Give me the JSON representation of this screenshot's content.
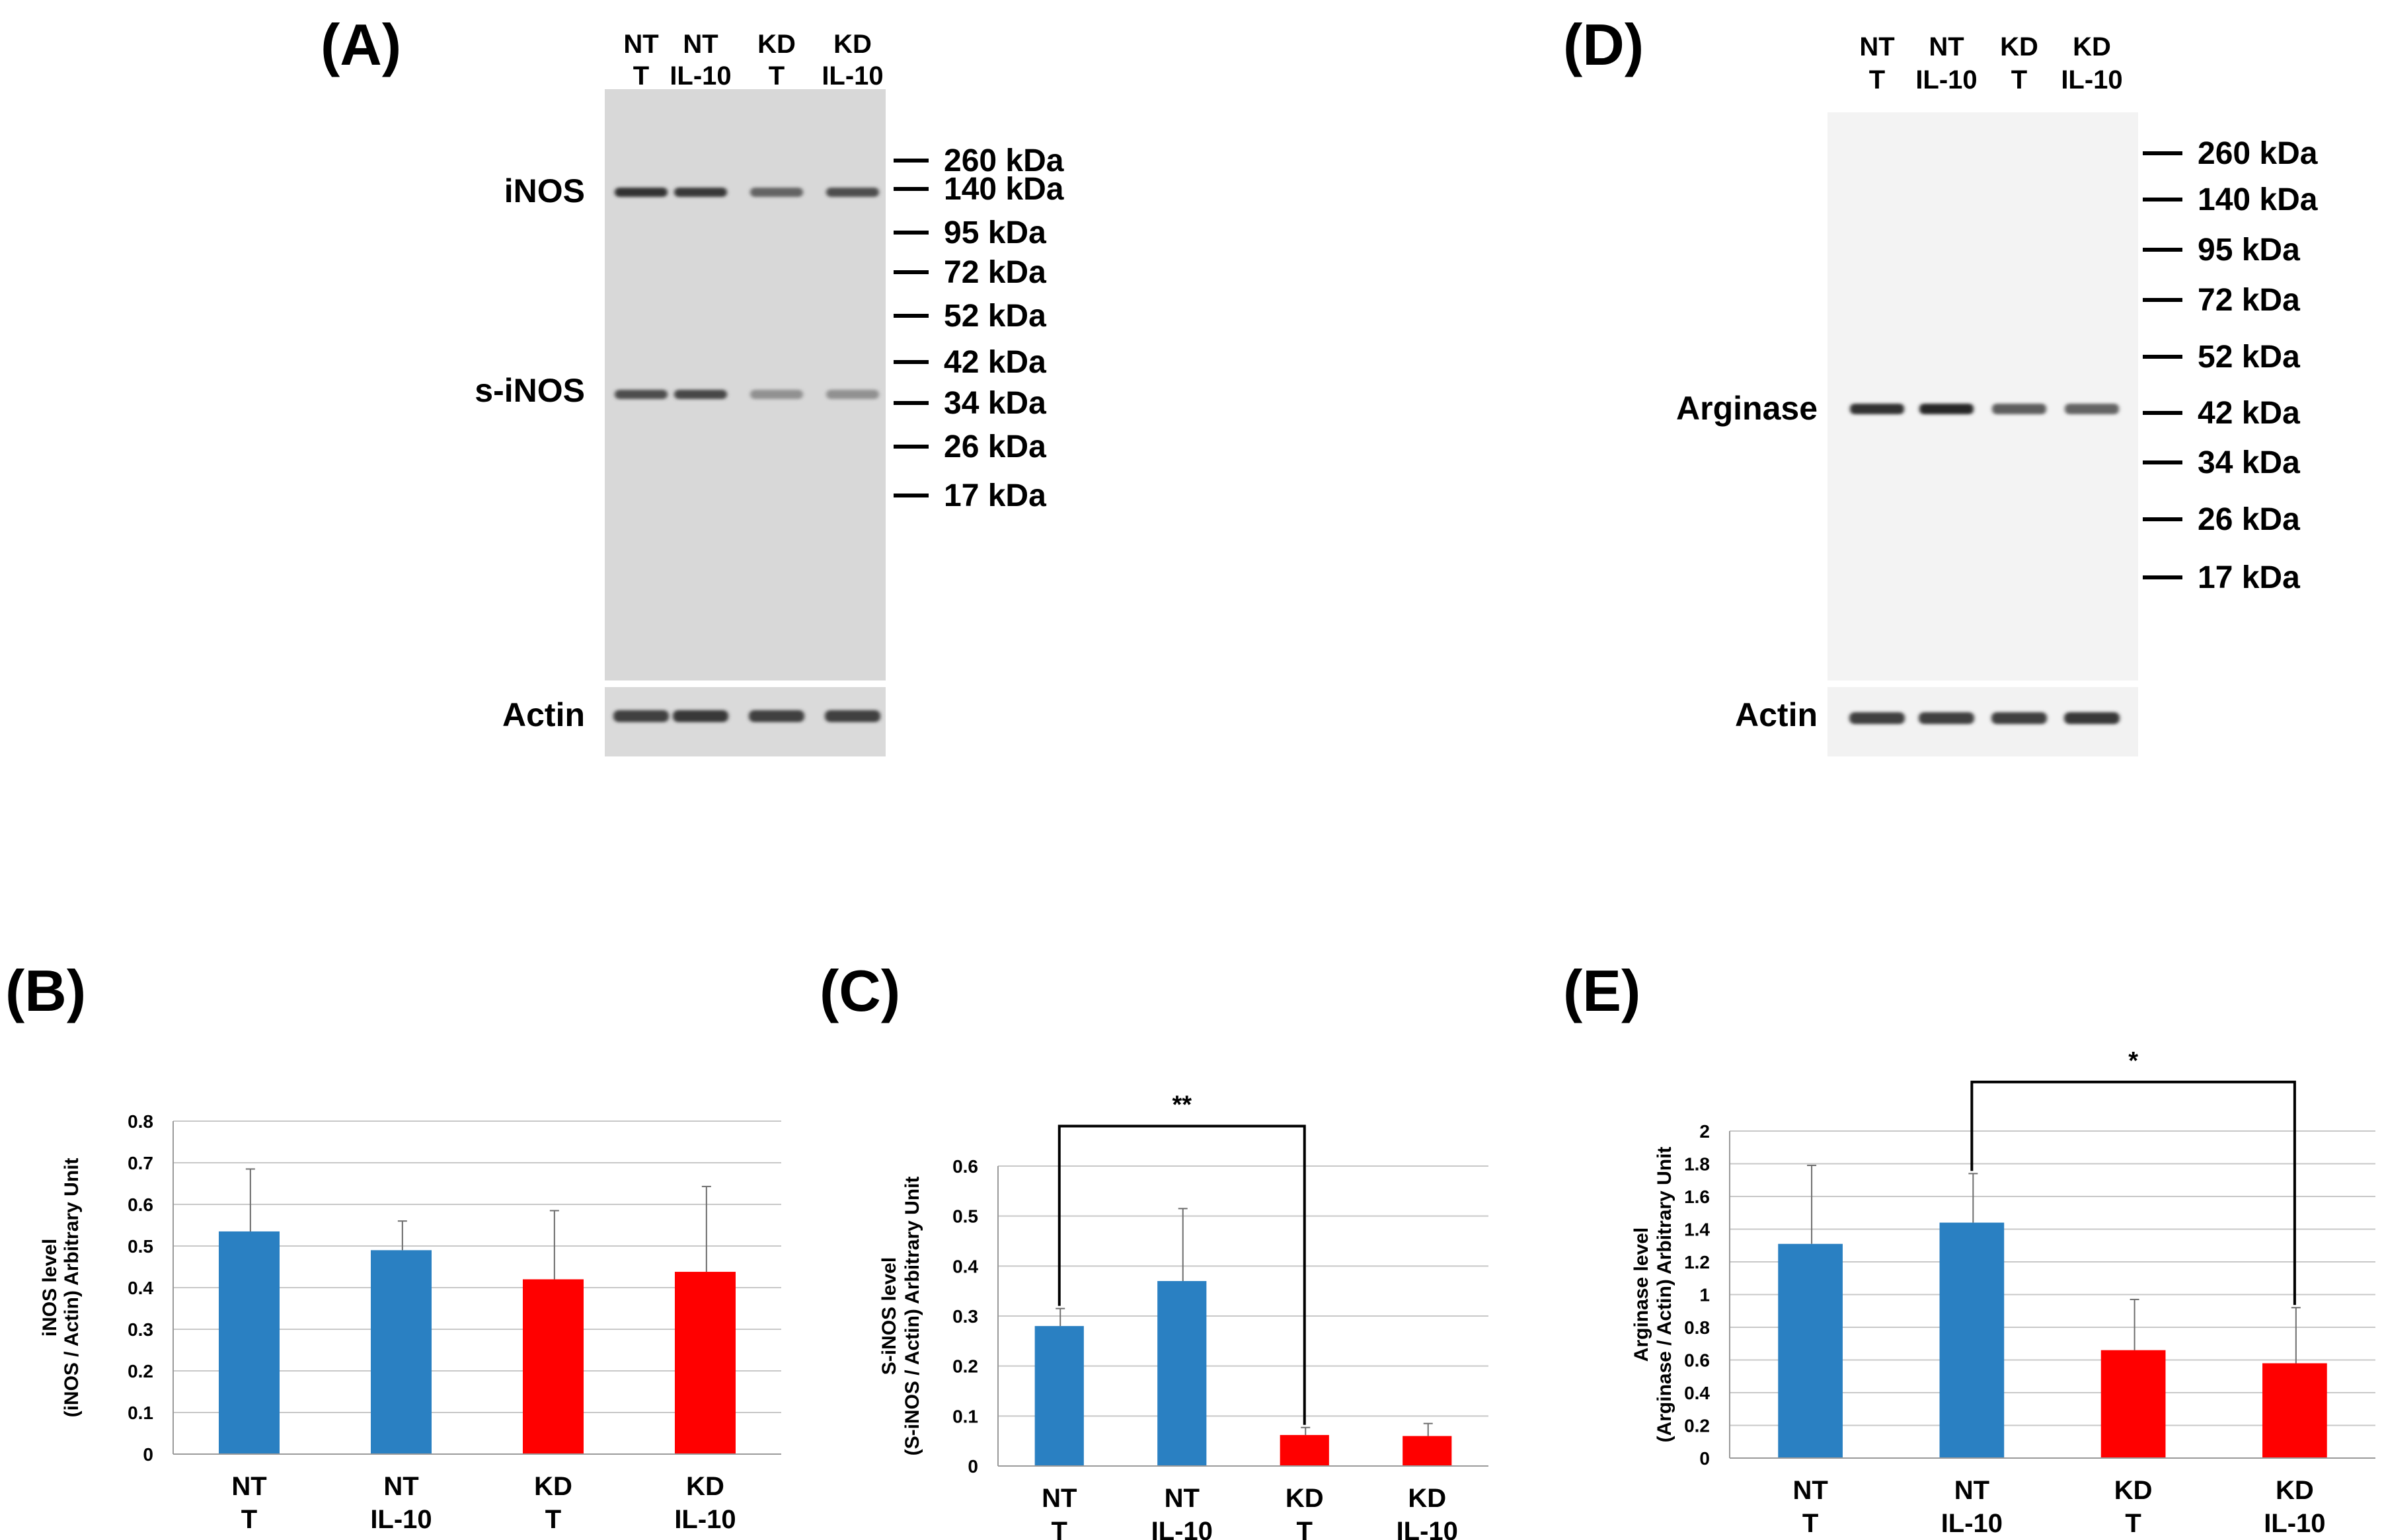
{
  "panels": {
    "A": {
      "label": "(A)",
      "lanes": [
        [
          "NT",
          "T"
        ],
        [
          "NT",
          "IL-10"
        ],
        [
          "KD",
          "T"
        ],
        [
          "KD",
          "IL-10"
        ]
      ],
      "markers": [
        "260 kDa",
        "140 kDa",
        "95 kDa",
        "72 kDa",
        "52 kDa",
        "42 kDa",
        "34 kDa",
        "26 kDa",
        "17 kDa"
      ],
      "bands": [
        {
          "label": "iNOS",
          "intensity": [
            0.95,
            0.9,
            0.6,
            0.75
          ]
        },
        {
          "label": "s-iNOS",
          "intensity": [
            0.75,
            0.8,
            0.3,
            0.3
          ]
        }
      ],
      "loading": {
        "label": "Actin",
        "intensity": [
          0.85,
          0.9,
          0.85,
          0.85
        ]
      }
    },
    "D": {
      "label": "(D)",
      "lanes": [
        [
          "NT",
          "T"
        ],
        [
          "NT",
          "IL-10"
        ],
        [
          "KD",
          "T"
        ],
        [
          "KD",
          "IL-10"
        ]
      ],
      "markers": [
        "260 kDa",
        "140 kDa",
        "95 kDa",
        "72 kDa",
        "52 kDa",
        "42 kDa",
        "34 kDa",
        "26 kDa",
        "17 kDa"
      ],
      "bands": [
        {
          "label": "Arginase",
          "intensity": [
            0.95,
            1.0,
            0.65,
            0.6
          ]
        }
      ],
      "loading": {
        "label": "Actin",
        "intensity": [
          0.85,
          0.85,
          0.85,
          0.9
        ]
      }
    }
  },
  "chart_data": [
    {
      "panel": "(B)",
      "type": "bar",
      "categories": [
        [
          "NT",
          "T"
        ],
        [
          "NT",
          "IL-10"
        ],
        [
          "KD",
          "T"
        ],
        [
          "KD",
          "IL-10"
        ]
      ],
      "values": [
        0.535,
        0.49,
        0.42,
        0.438
      ],
      "errors": [
        0.15,
        0.07,
        0.165,
        0.205
      ],
      "colors": [
        "#2a80c2",
        "#2a80c2",
        "#ff0000",
        "#ff0000"
      ],
      "ylim": [
        0,
        0.8
      ],
      "yticks": [
        "0",
        "0.1",
        "0.2",
        "0.3",
        "0.4",
        "0.5",
        "0.6",
        "0.7",
        "0.8"
      ],
      "ylabel": [
        "iNOS level",
        "(iNOS / Actin) Arbitrary Unit"
      ],
      "significance": []
    },
    {
      "panel": "(C)",
      "type": "bar",
      "categories": [
        [
          "NT",
          "T"
        ],
        [
          "NT",
          "IL-10"
        ],
        [
          "KD",
          "T"
        ],
        [
          "KD",
          "IL-10"
        ]
      ],
      "values": [
        0.28,
        0.37,
        0.062,
        0.06
      ],
      "errors": [
        0.035,
        0.145,
        0.015,
        0.025
      ],
      "colors": [
        "#2a80c2",
        "#2a80c2",
        "#ff0000",
        "#ff0000"
      ],
      "ylim": [
        0,
        0.6
      ],
      "yticks": [
        "0",
        "0.1",
        "0.2",
        "0.3",
        "0.4",
        "0.5",
        "0.6"
      ],
      "ylabel": [
        "S-iNOS level",
        "(S-iNOS / Actin) Arbitrary Unit"
      ],
      "significance": [
        {
          "from": 0,
          "to": 2,
          "label": "**",
          "level": 0.68
        }
      ]
    },
    {
      "panel": "(E)",
      "type": "bar",
      "categories": [
        [
          "NT",
          "T"
        ],
        [
          "NT",
          "IL-10"
        ],
        [
          "KD",
          "T"
        ],
        [
          "KD",
          "IL-10"
        ]
      ],
      "values": [
        1.31,
        1.44,
        0.66,
        0.58
      ],
      "errors": [
        0.48,
        0.3,
        0.31,
        0.34
      ],
      "colors": [
        "#2a80c2",
        "#2a80c2",
        "#ff0000",
        "#ff0000"
      ],
      "ylim": [
        0,
        2
      ],
      "yticks": [
        "0",
        "0.2",
        "0.4",
        "0.6",
        "0.8",
        "1",
        "1.2",
        "1.4",
        "1.6",
        "1.8",
        "2"
      ],
      "ylabel": [
        "Arginase level",
        "(Arginase / Actin) Arbitrary Unit"
      ],
      "significance": [
        {
          "from": 1,
          "to": 3,
          "label": "*",
          "level": 2.3
        }
      ]
    }
  ]
}
